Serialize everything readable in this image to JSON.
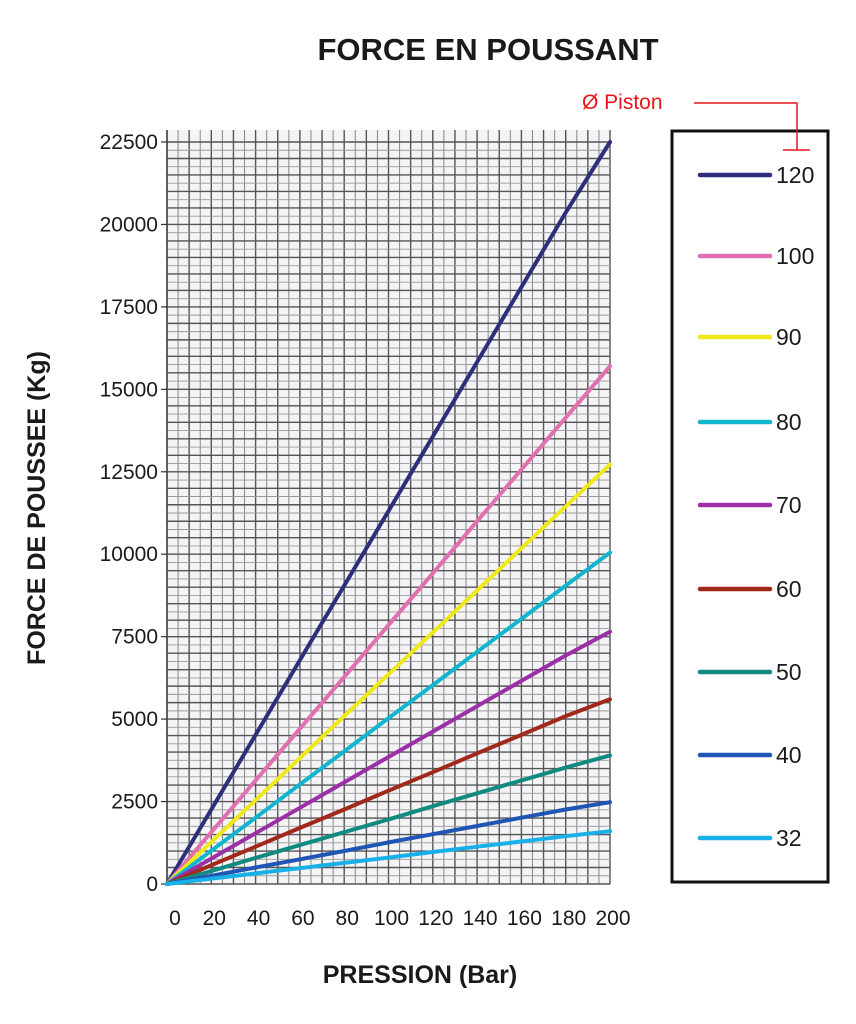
{
  "chart_data": {
    "type": "line",
    "title": "FORCE EN POUSSANT",
    "xlabel": "PRESSION (Bar)",
    "ylabel": "FORCE DE POUSSEE (Kg)",
    "xlim": [
      0,
      200
    ],
    "ylim": [
      0,
      22500
    ],
    "grid": true,
    "x_ticks": [
      "0",
      "20",
      "40",
      "60",
      "80",
      "100",
      "120",
      "140",
      "160",
      "180",
      "200"
    ],
    "y_ticks": [
      "0",
      "2500",
      "5000",
      "7500",
      "10000",
      "12500",
      "15000",
      "17500",
      "20000",
      "22500"
    ],
    "x": [
      0,
      20,
      40,
      60,
      80,
      100,
      120,
      140,
      160,
      180,
      200
    ],
    "legend_title": "Ø Piston",
    "legend_position": "right",
    "series": [
      {
        "name": "120",
        "color": "#2e2f7a",
        "values": [
          0,
          2260,
          4520,
          6790,
          9050,
          11310,
          13570,
          15830,
          18100,
          20360,
          22500
        ]
      },
      {
        "name": "100",
        "color": "#e070b0",
        "values": [
          0,
          1570,
          3140,
          4710,
          6280,
          7850,
          9420,
          11000,
          12570,
          14140,
          15700
        ]
      },
      {
        "name": "90",
        "color": "#f0e81a",
        "values": [
          0,
          1270,
          2540,
          3820,
          5090,
          6360,
          7630,
          8900,
          10180,
          11450,
          12720
        ]
      },
      {
        "name": "80",
        "color": "#12b5d0",
        "values": [
          0,
          1010,
          2010,
          3020,
          4020,
          5030,
          6030,
          7040,
          8040,
          9050,
          10050
        ]
      },
      {
        "name": "70",
        "color": "#9b2fa8",
        "values": [
          0,
          770,
          1540,
          2310,
          3080,
          3850,
          4620,
          5390,
          6160,
          6930,
          7650
        ]
      },
      {
        "name": "60",
        "color": "#a0291c",
        "values": [
          0,
          570,
          1130,
          1700,
          2260,
          2830,
          3390,
          3960,
          4520,
          5090,
          5600
        ]
      },
      {
        "name": "50",
        "color": "#128a80",
        "values": [
          0,
          390,
          790,
          1180,
          1570,
          1960,
          2360,
          2750,
          3140,
          3530,
          3900
        ]
      },
      {
        "name": "40",
        "color": "#1f55b5",
        "values": [
          0,
          250,
          500,
          750,
          1000,
          1260,
          1510,
          1760,
          2010,
          2260,
          2480
        ]
      },
      {
        "name": "32",
        "color": "#18b0e8",
        "values": [
          0,
          160,
          320,
          480,
          640,
          800,
          970,
          1130,
          1290,
          1450,
          1600
        ]
      }
    ]
  }
}
